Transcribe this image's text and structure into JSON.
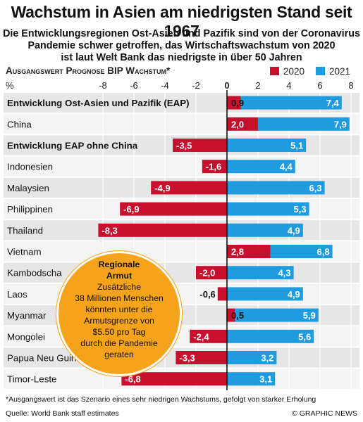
{
  "title": "Wachstum in Asien am niedrigsten Stand seit 1967",
  "subtitle_lines": [
    "Die Entwicklungsregionen Ost-Asien und Pazifik sind von der Coronavirus",
    "Pandemie schwer getroffen, das Wirtschaftswachstum von 2020",
    "ist laut Welt Bank das niedrigste in über 50 Jahren"
  ],
  "callout": {
    "title_lines": [
      "Regionale",
      "Armut"
    ],
    "body_lines": [
      "Zusätzliche",
      "38 Millionen Menschen",
      "könnten unter die",
      "Armutsgrenze von",
      "$5.50 pro Tag",
      "durch die Pandemie",
      "geraten"
    ]
  },
  "footnote": "*Ausgangswert ist das Szenario eines sehr niedrigen Wachstums, gefolgt von starker Erholung",
  "source": "Quelle: World Bank staff estimates",
  "copyright": "© GRAPHIC NEWS",
  "colors": {
    "y2020": "#c8102e",
    "y2021": "#1f9ce0",
    "row_a": "#e6e6e6",
    "row_b": "#f4f4f4"
  },
  "chart_data": {
    "type": "bar",
    "title": "Ausgangswert Prognose BIP Wachstum*",
    "unit_label": "%",
    "xlim": [
      -9.5,
      8
    ],
    "xticks": [
      -8,
      -6,
      -4,
      -2,
      0,
      2,
      4,
      6,
      8
    ],
    "grid": true,
    "legend_position": "top-right",
    "categories": [
      "Entwicklung Ost-Asien und Pazifik (EAP)",
      "China",
      "Entwicklung EAP ohne China",
      "Indonesien",
      "Malaysien",
      "Philippinen",
      "Thailand",
      "Vietnam",
      "Kambodscha",
      "Laos",
      "Myanmar",
      "Mongolei",
      "Papua Neu Guinea",
      "Timor-Leste"
    ],
    "bold_categories": [
      0,
      2
    ],
    "series": [
      {
        "name": "2020",
        "values": [
          0.9,
          2.0,
          -3.5,
          -1.6,
          -4.9,
          -6.9,
          -8.3,
          2.8,
          -2.0,
          -0.6,
          0.5,
          -2.4,
          -3.3,
          -6.8
        ]
      },
      {
        "name": "2021",
        "values": [
          7.4,
          7.9,
          5.1,
          4.4,
          6.3,
          5.3,
          4.9,
          6.8,
          4.3,
          4.9,
          5.9,
          5.6,
          3.2,
          3.1
        ]
      }
    ],
    "value_labels_2020": [
      "0,9",
      "2,0",
      "-3,5",
      "-1,6",
      "-4,9",
      "-6,9",
      "-8,3",
      "2,8",
      "-2,0",
      "-0,6",
      "0,5",
      "-2,4",
      "-3,3",
      "-6,8"
    ],
    "value_labels_2021": [
      "7,4",
      "7,9",
      "5,1",
      "4,4",
      "6,3",
      "5,3",
      "4,9",
      "6,8",
      "4,3",
      "4,9",
      "5,9",
      "5,6",
      "3,2",
      "3,1"
    ]
  }
}
